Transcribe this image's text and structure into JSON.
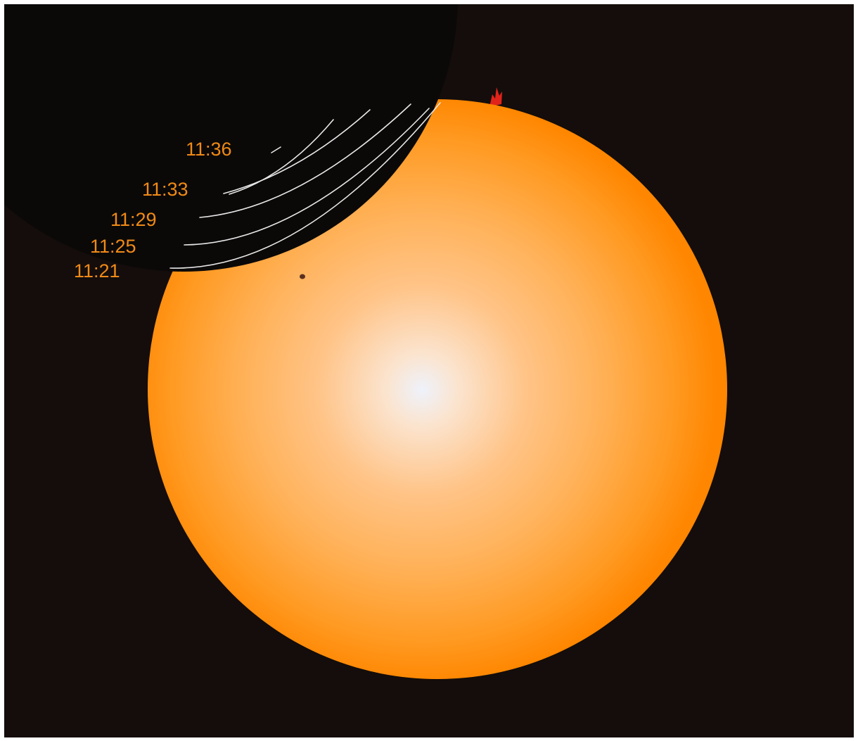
{
  "image": {
    "background_color": "#140d0b",
    "sun_colors": {
      "center": "#eef2fb",
      "mid": "#ffb055",
      "limb": "#ff8600"
    },
    "moon_color": "#0b0908",
    "arc_color": "#e8e8e8",
    "prominence_color": "#e2231a",
    "label_color": "#f08a16"
  },
  "time_labels": [
    {
      "text": "11:36"
    },
    {
      "text": "11:33"
    },
    {
      "text": "11:29"
    },
    {
      "text": "11:25"
    },
    {
      "text": "11:21"
    }
  ]
}
